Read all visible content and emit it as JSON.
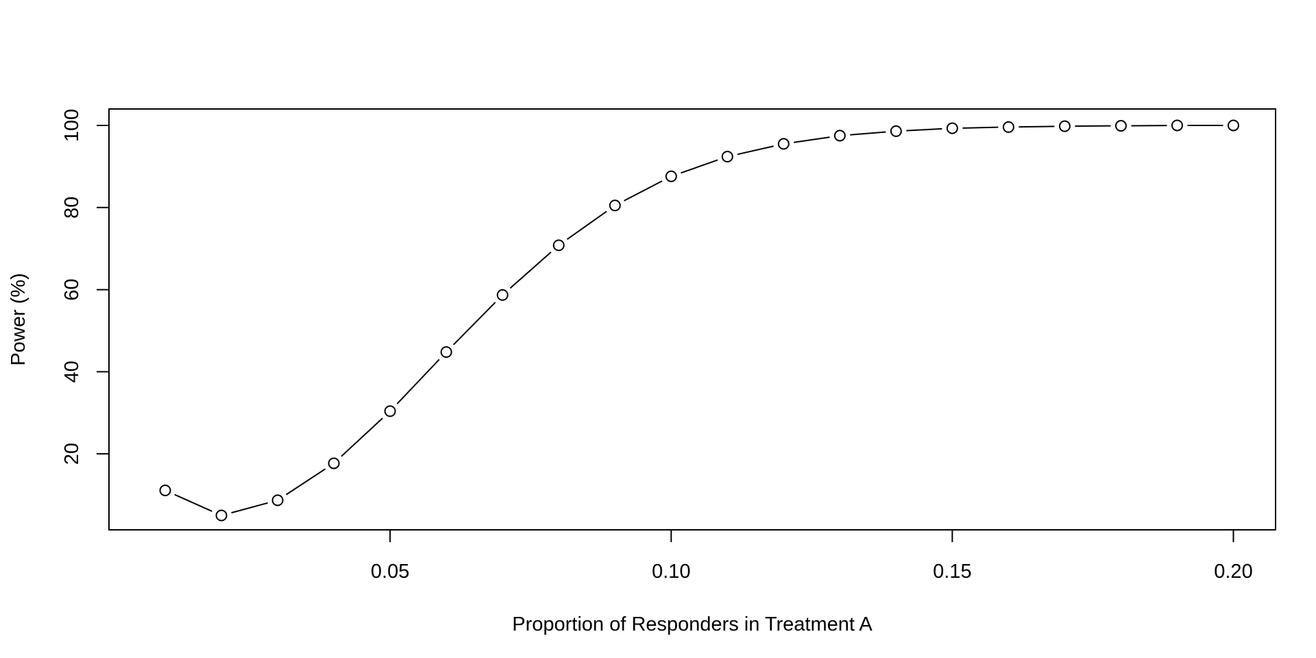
{
  "chart_data": {
    "type": "line",
    "title": "",
    "xlabel": "Proportion of Responders in Treatment A",
    "ylabel": "Power (%)",
    "xlim": [
      0.0,
      0.2075
    ],
    "ylim": [
      1.5,
      104
    ],
    "x_ticks": [
      0.05,
      0.1,
      0.15,
      0.2
    ],
    "x_tick_labels": [
      "0.05",
      "0.10",
      "0.15",
      "0.20"
    ],
    "y_ticks": [
      20,
      40,
      60,
      80,
      100
    ],
    "y_tick_labels": [
      "20",
      "40",
      "60",
      "80",
      "100"
    ],
    "grid": false,
    "legend": "none",
    "marker": "open-circle",
    "line_color": "#000000",
    "series": [
      {
        "x": [
          0.01,
          0.02,
          0.03,
          0.04,
          0.05,
          0.06,
          0.07,
          0.08,
          0.09,
          0.1,
          0.11,
          0.12,
          0.13,
          0.14,
          0.15,
          0.16,
          0.17,
          0.18,
          0.19,
          0.2
        ],
        "y": [
          11.1,
          5.0,
          8.7,
          17.7,
          30.4,
          44.8,
          58.7,
          70.8,
          80.5,
          87.6,
          92.4,
          95.5,
          97.5,
          98.6,
          99.3,
          99.6,
          99.8,
          99.9,
          100.0,
          100.0
        ]
      }
    ]
  }
}
